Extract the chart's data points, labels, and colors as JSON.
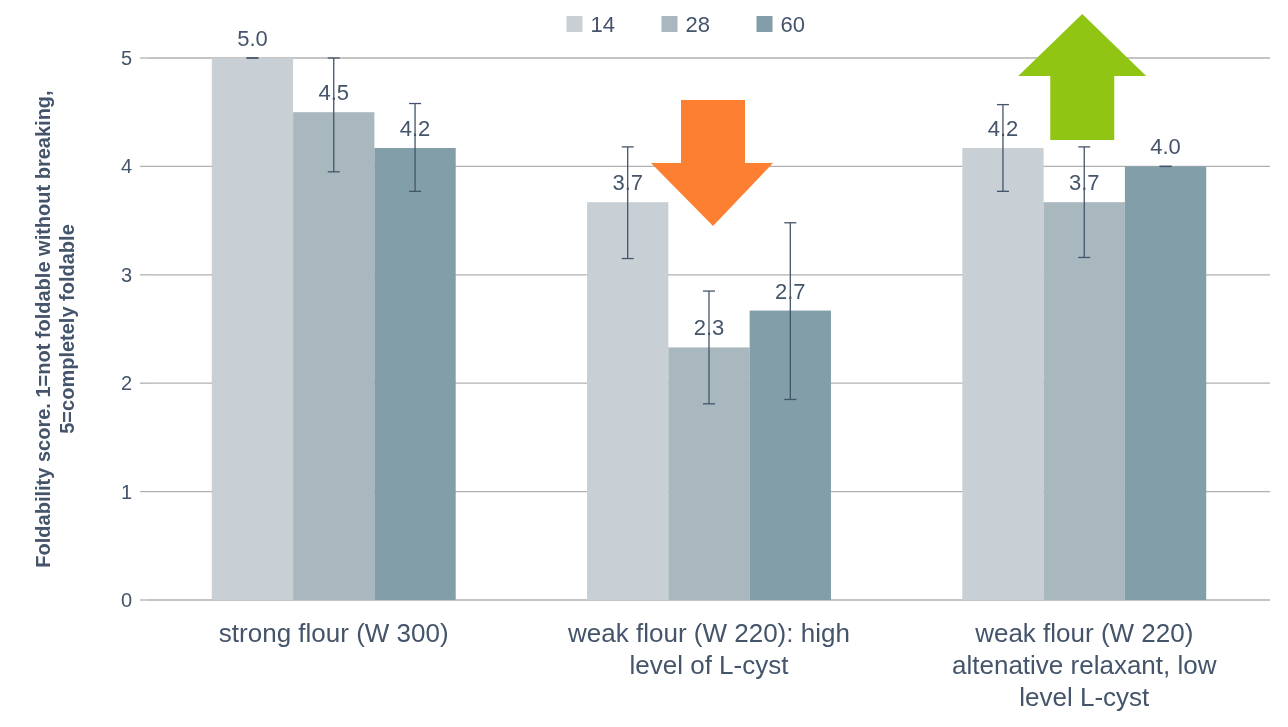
{
  "chart_data": {
    "type": "bar",
    "ylabel": "Foldability score. 1=not foldable without breaking, 5=completely foldable",
    "categories": [
      "strong flour (W 300)",
      "weak flour (W 220): high level of L-cyst",
      "weak flour (W 220) altenative relaxant, low level L-cyst"
    ],
    "series": [
      {
        "name": "14",
        "color": "#c8d0d6",
        "values": [
          5.0,
          3.67,
          4.17
        ],
        "value_labels": [
          "5.0",
          "3.7",
          "4.2"
        ],
        "errors": [
          0,
          [
            3.15,
            4.18
          ],
          [
            3.77,
            4.57
          ]
        ]
      },
      {
        "name": "28",
        "color": "#a9b8bf",
        "values": [
          4.5,
          2.33,
          3.67
        ],
        "value_labels": [
          "4.5",
          "2.3",
          "3.7"
        ],
        "errors": [
          [
            3.95,
            5.0
          ],
          [
            1.81,
            2.85
          ],
          [
            3.16,
            4.18
          ]
        ]
      },
      {
        "name": "60",
        "color": "#829ea9",
        "values": [
          4.17,
          2.67,
          4.0
        ],
        "value_labels": [
          "4.2",
          "2.7",
          "4.0"
        ],
        "errors": [
          [
            3.77,
            4.58
          ],
          [
            1.85,
            3.48
          ],
          0
        ]
      }
    ],
    "ylim": [
      0,
      5
    ],
    "yticks": [
      0,
      1,
      2,
      3,
      4,
      5
    ],
    "grid": "y",
    "legend": "top"
  }
}
